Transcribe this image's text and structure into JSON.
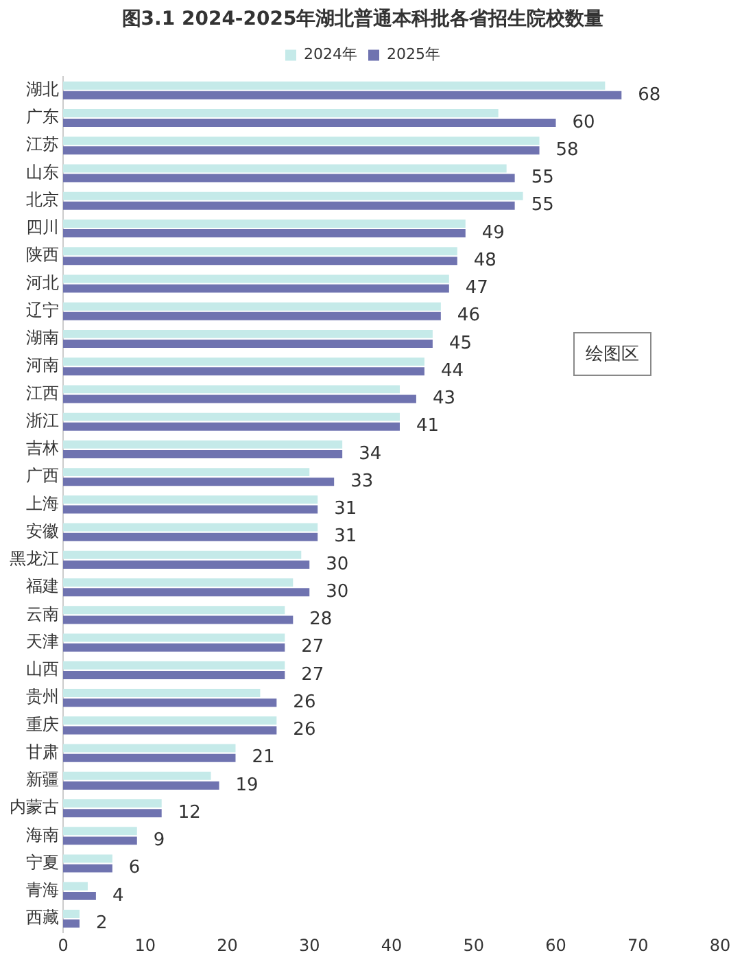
{
  "chart_data": {
    "type": "bar",
    "orientation": "horizontal",
    "title": "图3.1 2024-2025年湖北普通本科批各省招生院校数量",
    "categories": [
      "湖北",
      "广东",
      "江苏",
      "山东",
      "北京",
      "四川",
      "陕西",
      "河北",
      "辽宁",
      "湖南",
      "河南",
      "江西",
      "浙江",
      "吉林",
      "广西",
      "上海",
      "安徽",
      "黑龙江",
      "福建",
      "云南",
      "天津",
      "山西",
      "贵州",
      "重庆",
      "甘肃",
      "新疆",
      "内蒙古",
      "海南",
      "宁夏",
      "青海",
      "西藏"
    ],
    "series": [
      {
        "name": "2024年",
        "color": "#c5eae9",
        "values": [
          66,
          53,
          58,
          54,
          56,
          49,
          48,
          47,
          46,
          45,
          44,
          41,
          41,
          34,
          30,
          31,
          31,
          29,
          28,
          27,
          27,
          27,
          24,
          26,
          21,
          18,
          12,
          9,
          6,
          3,
          2
        ]
      },
      {
        "name": "2025年",
        "color": "#6f73b0",
        "values": [
          68,
          60,
          58,
          55,
          55,
          49,
          48,
          47,
          46,
          45,
          44,
          43,
          41,
          34,
          33,
          31,
          31,
          30,
          30,
          28,
          27,
          27,
          26,
          26,
          21,
          19,
          12,
          9,
          6,
          4,
          2
        ],
        "value_labels": [
          "68",
          "60",
          "58",
          "55",
          "55",
          "49",
          "48",
          "47",
          "46",
          "45",
          "44",
          "43",
          "41",
          "34",
          "33",
          "31",
          "31",
          "30",
          "30",
          "28",
          "27",
          "27",
          "26",
          "26",
          "21",
          "19",
          "12",
          "9",
          "6",
          "4",
          "2"
        ]
      }
    ],
    "xlim": [
      0,
      80
    ],
    "xticks": [
      0,
      10,
      20,
      30,
      40,
      50,
      60,
      70,
      80
    ],
    "grid": false,
    "legend": "top",
    "annotations": [
      "绘图区"
    ]
  }
}
